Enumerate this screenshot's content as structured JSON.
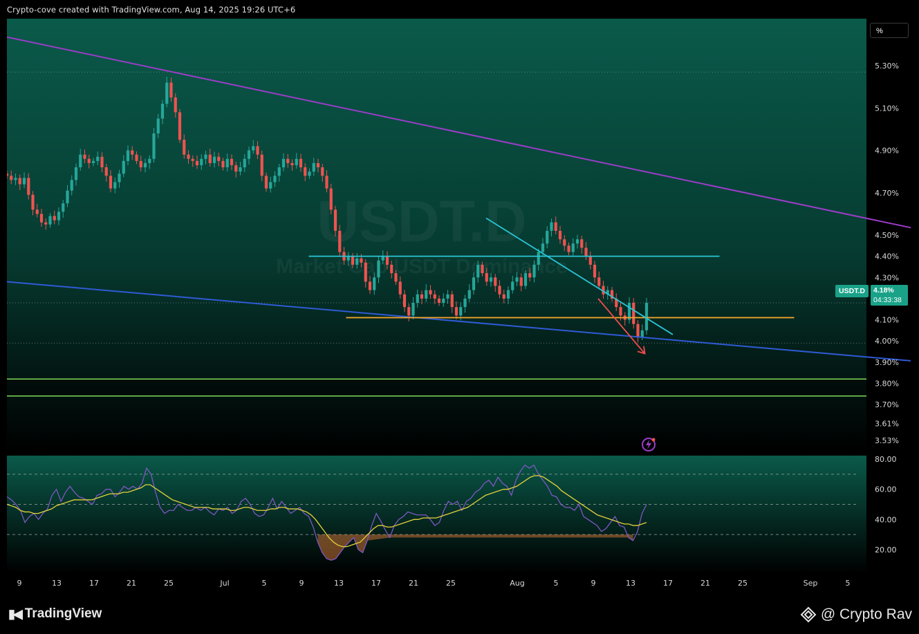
{
  "header": {
    "attribution": "Crypto-cove created with TradingView.com, Aug 14, 2025 19:26 UTC+6"
  },
  "watermark": {
    "symbol": "USDT.D",
    "subtitle": "Market Cap USDT Dominance"
  },
  "toolbar": {
    "percent_label": "%"
  },
  "price_tag": {
    "symbol": "USDT.D",
    "value": "4.18%",
    "countdown": "04:33:38",
    "color": "#1aa288"
  },
  "footer": {
    "brand": "TradingView",
    "credit": "@ Crypto Rav"
  },
  "colors": {
    "bull": "#26a69a",
    "bear": "#ef5350",
    "wedge_top": "#9c3cc9",
    "wedge_bottom": "#2f5bd6",
    "resistance": "#29c5d6",
    "support": "#f0a32b",
    "zone": "#7ed957",
    "projection": "#f24b4b",
    "rsi": "#7e57c2",
    "rsi_ma": "#e4d23a"
  },
  "chart_data": [
    {
      "type": "candlestick",
      "title": "USDT.D",
      "y_axis_labels": [
        "5.30%",
        "5.10%",
        "4.90%",
        "4.70%",
        "4.50%",
        "4.40%",
        "4.30%",
        "4.10%",
        "4.00%",
        "3.90%",
        "3.80%",
        "3.70%",
        "3.61%",
        "3.53%"
      ],
      "x_axis_labels": [
        "9",
        "13",
        "17",
        "21",
        "25",
        "Jul",
        "5",
        "9",
        "13",
        "17",
        "21",
        "25",
        "Aug",
        "5",
        "9",
        "13",
        "17",
        "21",
        "25",
        "Sep",
        "5"
      ],
      "ylim": [
        3.53,
        5.35
      ],
      "scale": "percent",
      "closes": [
        4.78,
        4.76,
        4.77,
        4.74,
        4.77,
        4.69,
        4.62,
        4.6,
        4.56,
        4.55,
        4.59,
        4.57,
        4.61,
        4.65,
        4.71,
        4.76,
        4.82,
        4.88,
        4.86,
        4.84,
        4.85,
        4.87,
        4.82,
        4.78,
        4.72,
        4.75,
        4.79,
        4.85,
        4.9,
        4.88,
        4.85,
        4.82,
        4.84,
        4.86,
        4.98,
        5.05,
        5.12,
        5.22,
        5.15,
        5.08,
        4.95,
        4.88,
        4.86,
        4.85,
        4.83,
        4.86,
        4.88,
        4.84,
        4.87,
        4.85,
        4.82,
        4.86,
        4.83,
        4.8,
        4.82,
        4.86,
        4.9,
        4.92,
        4.88,
        4.78,
        4.72,
        4.75,
        4.78,
        4.82,
        4.86,
        4.84,
        4.83,
        4.86,
        4.82,
        4.78,
        4.8,
        4.84,
        4.82,
        4.78,
        4.72,
        4.62,
        4.52,
        4.42,
        4.38,
        4.4,
        4.36,
        4.39,
        4.37,
        4.28,
        4.24,
        4.3,
        4.38,
        4.4,
        4.36,
        4.32,
        4.28,
        4.22,
        4.16,
        4.12,
        4.18,
        4.22,
        4.2,
        4.24,
        4.22,
        4.2,
        4.18,
        4.2,
        4.22,
        4.16,
        4.12,
        4.16,
        4.2,
        4.24,
        4.3,
        4.36,
        4.32,
        4.28,
        4.3,
        4.26,
        4.22,
        4.2,
        4.24,
        4.28,
        4.3,
        4.26,
        4.32,
        4.3,
        4.36,
        4.42,
        4.46,
        4.52,
        4.56,
        4.52,
        4.48,
        4.45,
        4.42,
        4.46,
        4.48,
        4.44,
        4.4,
        4.36,
        4.3,
        4.26,
        4.22,
        4.24,
        4.2,
        4.16,
        4.12,
        4.1,
        4.18,
        4.08,
        4.02,
        4.05,
        4.18
      ],
      "overlays": [
        {
          "name": "wedge resistance",
          "x": [
            "Jun 5",
            "Oct 1"
          ],
          "y": [
            5.46,
            4.4
          ]
        },
        {
          "name": "wedge support",
          "x": [
            "Jun 5",
            "Oct 1"
          ],
          "y": [
            4.29,
            3.85
          ]
        },
        {
          "name": "horizontal resistance",
          "x": [
            "Jul 14",
            "Aug 27"
          ],
          "y": [
            4.4,
            4.4
          ]
        },
        {
          "name": "horizontal support",
          "x": [
            "Jul 18",
            "Sep 4"
          ],
          "y": [
            4.11,
            4.11
          ]
        },
        {
          "name": "descending trendline",
          "x": [
            "Aug 2",
            "Aug 22"
          ],
          "y": [
            4.58,
            4.03
          ]
        },
        {
          "name": "projection arrow",
          "x": [
            "Aug 14",
            "Aug 19"
          ],
          "y": [
            4.2,
            3.94
          ]
        }
      ],
      "zone": {
        "name": "demand zone",
        "y_range": [
          3.74,
          3.82
        ]
      },
      "dotted_levels": [
        5.27,
        4.18,
        3.99
      ],
      "grid": false
    },
    {
      "type": "line",
      "title": "RSI",
      "y_axis_labels": [
        "80.00",
        "60.00",
        "40.00",
        "20.00"
      ],
      "ylim": [
        11,
        80
      ],
      "bands": [
        30,
        50,
        70
      ],
      "series": [
        {
          "values": [
            55,
            53,
            50,
            46,
            38,
            42,
            44,
            40,
            44,
            47,
            56,
            60,
            52,
            58,
            62,
            58,
            55,
            54,
            52,
            50,
            56,
            57,
            60,
            60,
            55,
            58,
            62,
            60,
            62,
            60,
            64,
            74,
            70,
            58,
            48,
            44,
            46,
            46,
            50,
            48,
            46,
            46,
            48,
            46,
            48,
            45,
            43,
            47,
            46,
            48,
            44,
            46,
            52,
            54,
            50,
            44,
            42,
            43,
            48,
            54,
            47,
            52,
            48,
            44,
            46,
            48,
            44,
            42,
            35,
            25,
            18,
            14,
            13,
            14,
            18,
            22,
            25,
            28,
            20,
            18,
            26,
            36,
            44,
            39,
            33,
            28,
            36,
            40,
            42,
            45,
            44,
            43,
            43,
            43,
            40,
            36,
            38,
            46,
            52,
            50,
            52,
            46,
            52,
            54,
            58,
            60,
            64,
            66,
            62,
            68,
            64,
            62,
            56,
            66,
            72,
            76,
            74,
            76,
            70,
            66,
            62,
            56,
            55,
            50,
            48,
            48,
            46,
            50,
            42,
            40,
            38,
            36,
            32,
            34,
            38,
            42,
            36,
            35,
            28,
            26,
            32,
            44,
            50
          ]
        },
        {
          "values": [
            50,
            49,
            48,
            46,
            45,
            45,
            44,
            44,
            45,
            46,
            47,
            49,
            50,
            51,
            52,
            53,
            53,
            53,
            53,
            53,
            54,
            55,
            56,
            57,
            57,
            57,
            58,
            58,
            59,
            60,
            61,
            63,
            63,
            61,
            59,
            57,
            55,
            53,
            52,
            51,
            50,
            49,
            48,
            48,
            48,
            48,
            47,
            47,
            47,
            47,
            46,
            46,
            47,
            48,
            48,
            47,
            46,
            46,
            46,
            47,
            47,
            48,
            48,
            47,
            47,
            47,
            46,
            45,
            43,
            40,
            36,
            32,
            28,
            25,
            23,
            22,
            22,
            23,
            24,
            25,
            28,
            31,
            34,
            36,
            36,
            35,
            35,
            36,
            37,
            38,
            39,
            40,
            40,
            41,
            41,
            41,
            41,
            42,
            43,
            44,
            45,
            46,
            47,
            48,
            50,
            52,
            54,
            56,
            57,
            58,
            59,
            60,
            60,
            61,
            62,
            64,
            66,
            68,
            69,
            69,
            68,
            66,
            64,
            62,
            59,
            57,
            55,
            53,
            51,
            49,
            47,
            45,
            43,
            42,
            41,
            40,
            39,
            38,
            37,
            37,
            36,
            36,
            37,
            38
          ]
        }
      ]
    }
  ]
}
